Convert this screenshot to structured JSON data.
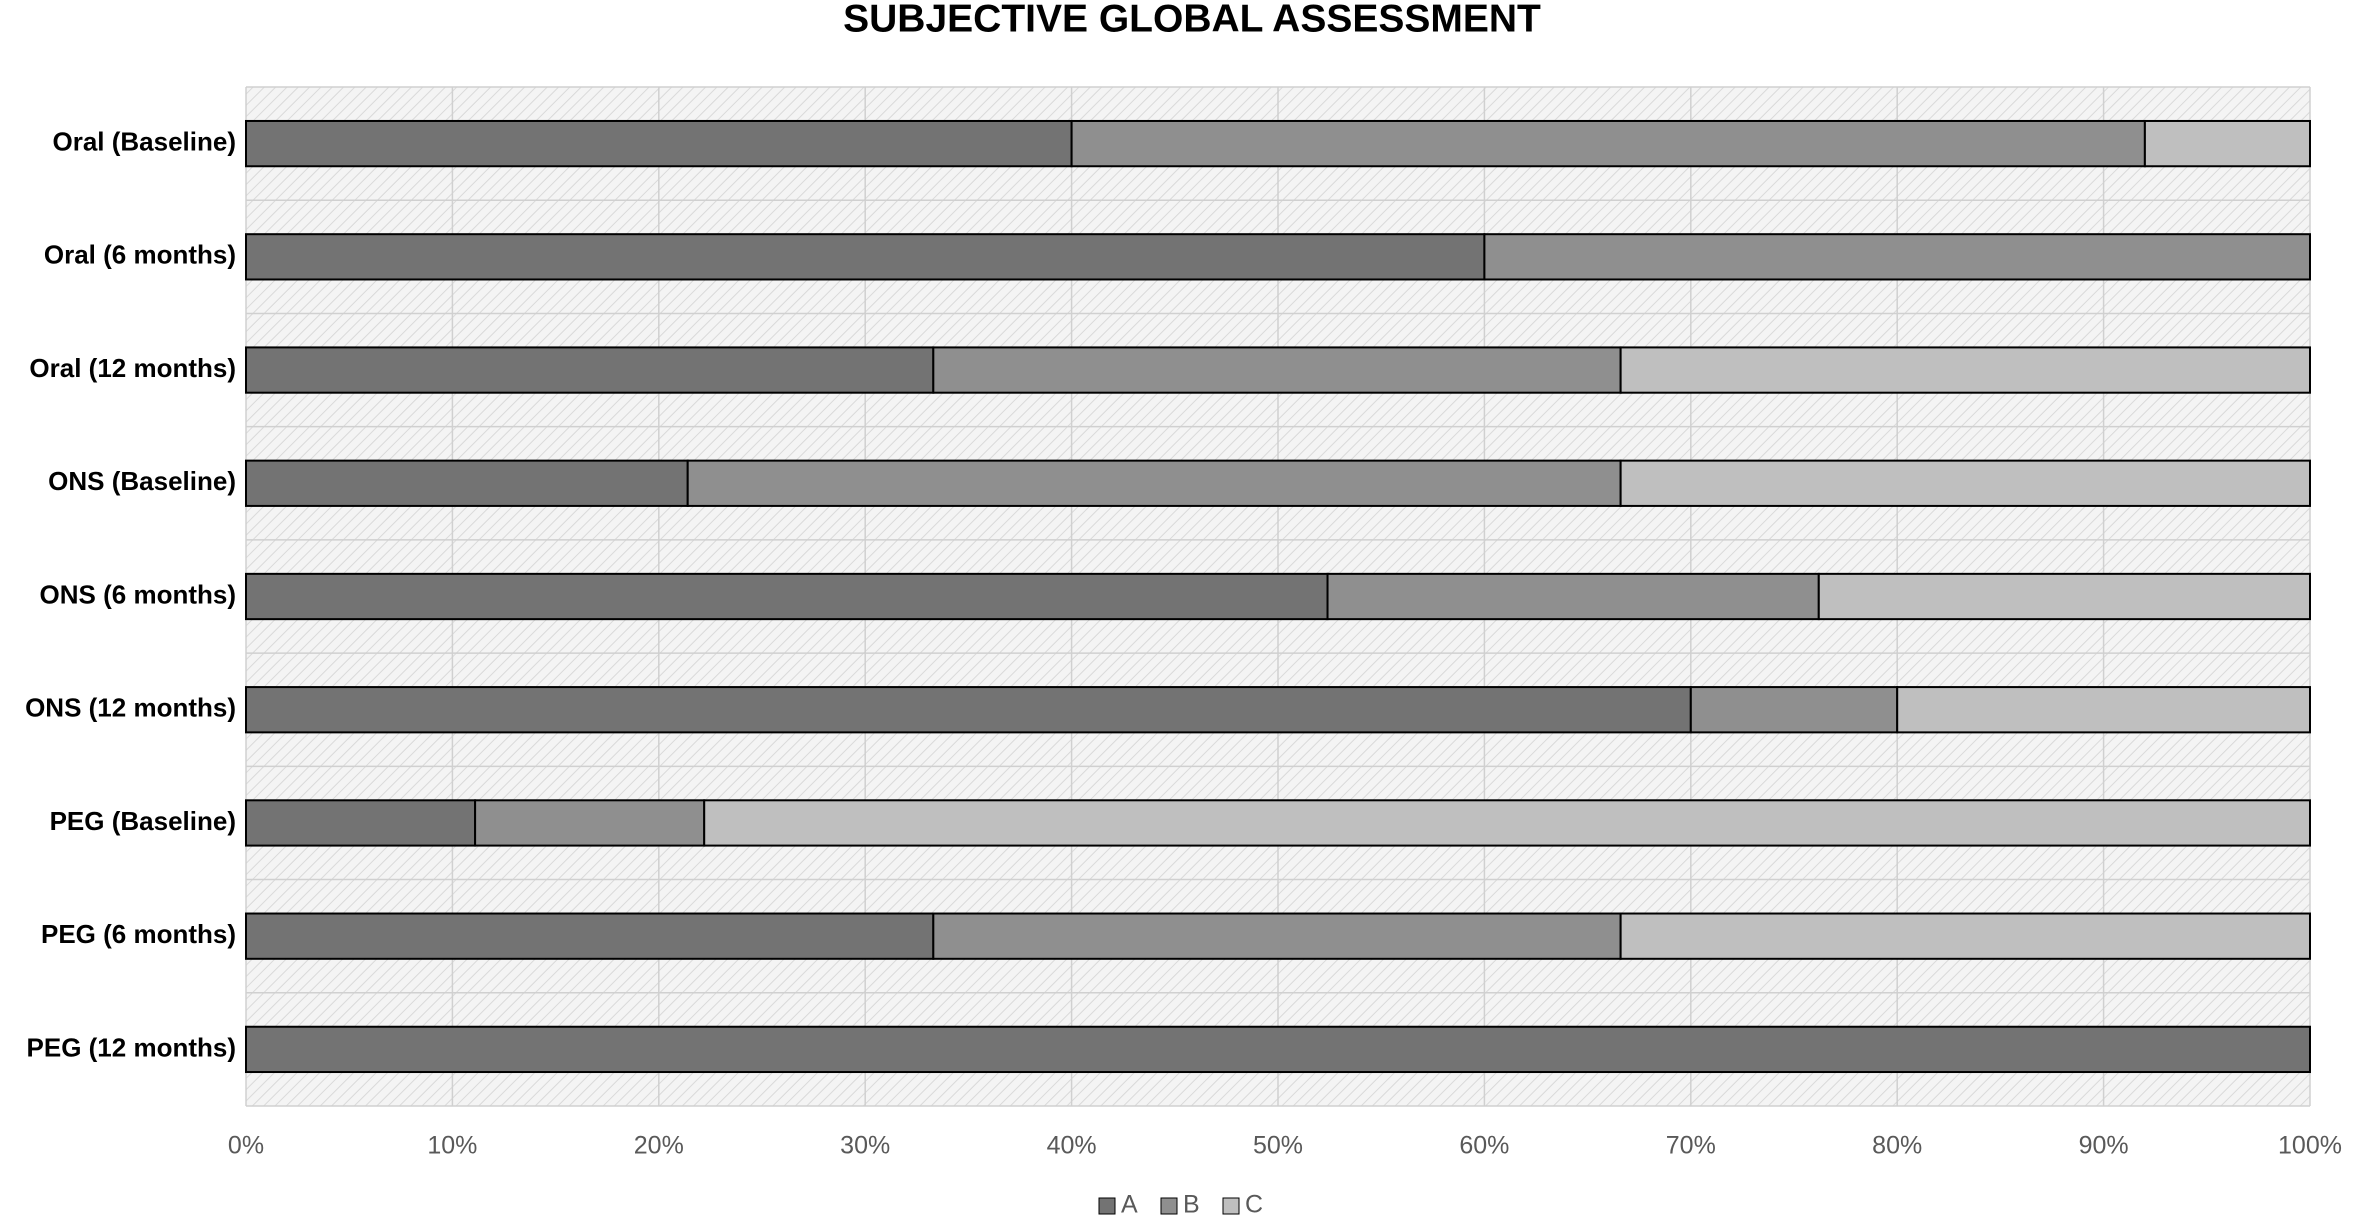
{
  "chart_data": {
    "type": "stacked_bar_horizontal",
    "title": "SUBJECTIVE GLOBAL ASSESSMENT",
    "categories": [
      "Oral (Baseline)",
      "Oral (6 months)",
      "Oral (12 months)",
      "ONS (Baseline)",
      "ONS (6 months)",
      "ONS (12 months)",
      "PEG (Baseline)",
      "PEG (6 months)",
      "PEG (12 months)"
    ],
    "series": [
      {
        "name": "A",
        "color": "#737373",
        "values": [
          40,
          60,
          33.3,
          21.4,
          52.4,
          70,
          11.1,
          33.3,
          100
        ]
      },
      {
        "name": "B",
        "color": "#8f8f8f",
        "values": [
          52,
          40,
          33.3,
          45.2,
          23.8,
          10,
          11.1,
          33.3,
          0
        ]
      },
      {
        "name": "C",
        "color": "#bfbfbf",
        "values": [
          8,
          0,
          33.4,
          33.4,
          23.8,
          20,
          77.8,
          33.4,
          0
        ]
      }
    ],
    "xlim": [
      0,
      100
    ],
    "xticks": [
      {
        "value": 0,
        "label": "0%"
      },
      {
        "value": 10,
        "label": "10%"
      },
      {
        "value": 20,
        "label": "20%"
      },
      {
        "value": 30,
        "label": "30%"
      },
      {
        "value": 40,
        "label": "40%"
      },
      {
        "value": 50,
        "label": "50%"
      },
      {
        "value": 60,
        "label": "60%"
      },
      {
        "value": 70,
        "label": "70%"
      },
      {
        "value": 80,
        "label": "80%"
      },
      {
        "value": 90,
        "label": "90%"
      },
      {
        "value": 100,
        "label": "100%"
      }
    ],
    "grid": true,
    "legend": "bottom"
  }
}
